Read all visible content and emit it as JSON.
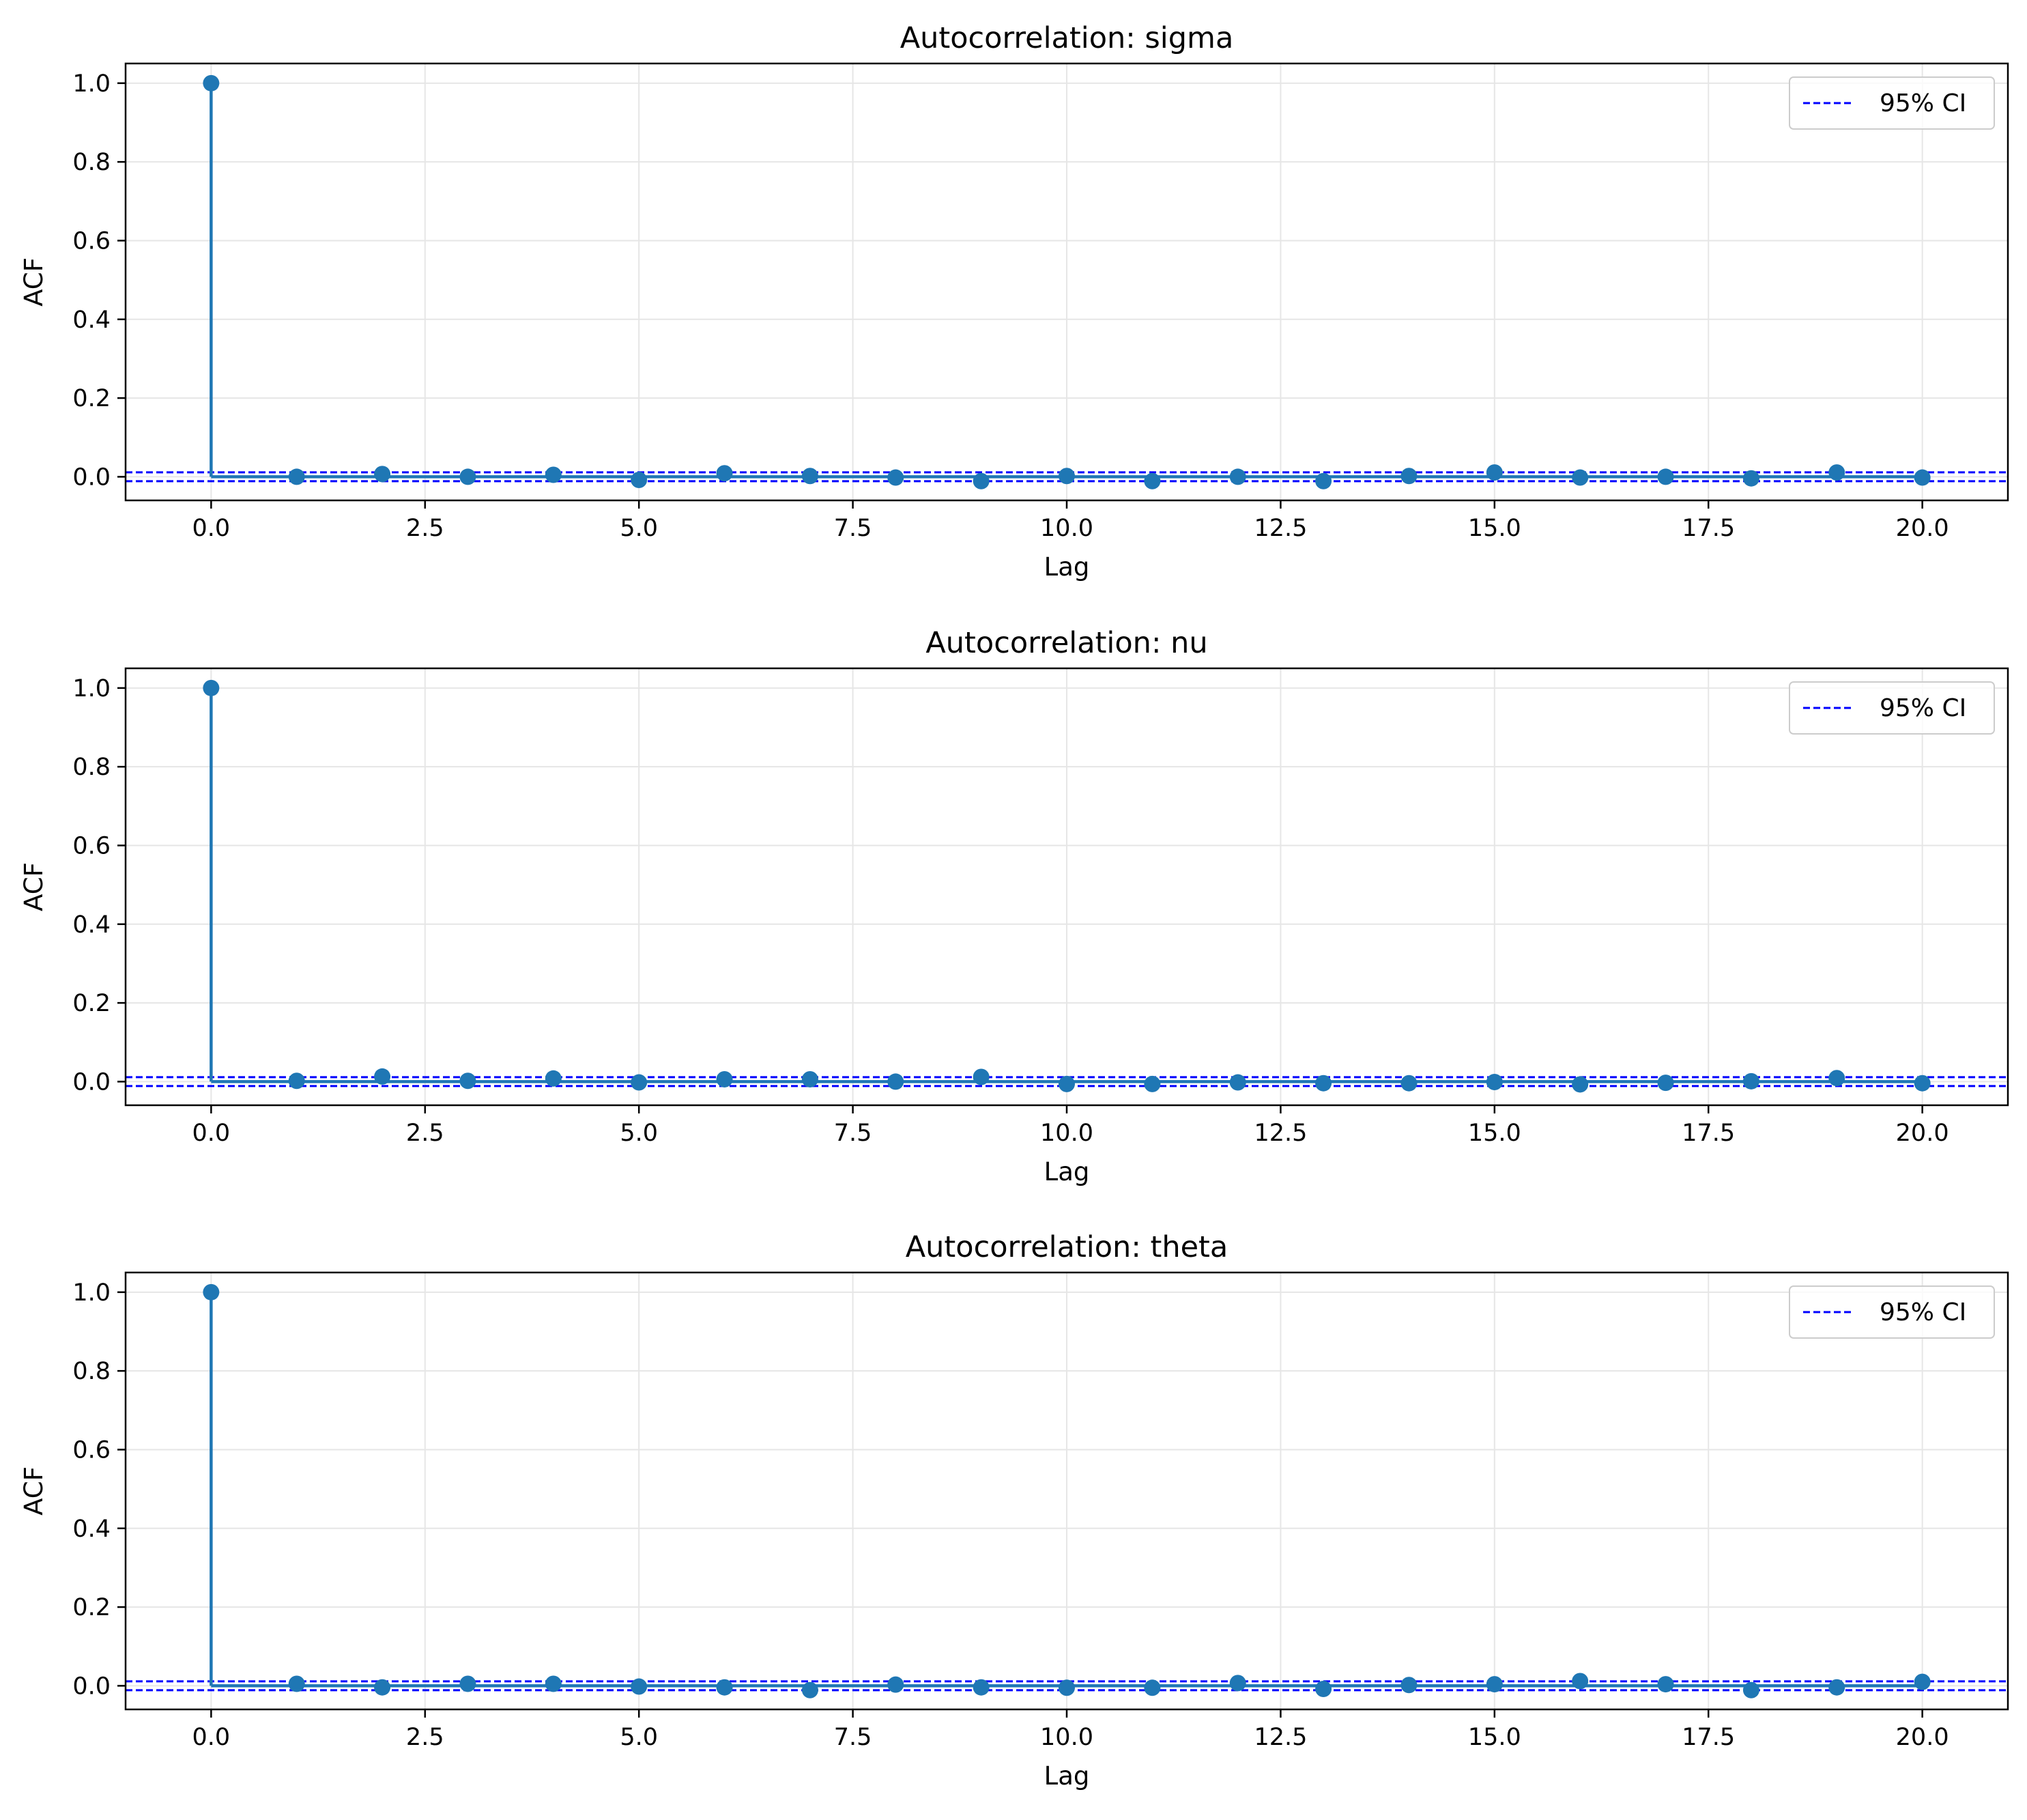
{
  "chart_data": [
    {
      "type": "stem",
      "title": "Autocorrelation: sigma",
      "xlabel": "Lag",
      "ylabel": "ACF",
      "xlim": [
        -1,
        21
      ],
      "ylim": [
        -0.06,
        1.05
      ],
      "x_ticks": [
        "0.0",
        "2.5",
        "5.0",
        "7.5",
        "10.0",
        "12.5",
        "15.0",
        "17.5",
        "20.0"
      ],
      "y_ticks": [
        "0.0",
        "0.2",
        "0.4",
        "0.6",
        "0.8",
        "1.0"
      ],
      "grid": true,
      "legend": {
        "placement": "top-right",
        "entries": [
          "95% CI"
        ]
      },
      "ci": [
        -0.0113,
        0.0113
      ],
      "x": [
        0,
        1,
        2,
        3,
        4,
        5,
        6,
        7,
        8,
        9,
        10,
        11,
        12,
        13,
        14,
        15,
        16,
        17,
        18,
        19,
        20
      ],
      "values": [
        1.0,
        0.0,
        0.007,
        0.0,
        0.005,
        -0.008,
        0.009,
        0.002,
        -0.002,
        -0.011,
        0.002,
        -0.011,
        0.0,
        -0.011,
        0.002,
        0.011,
        -0.002,
        0.0,
        -0.004,
        0.011,
        -0.002
      ]
    },
    {
      "type": "stem",
      "title": "Autocorrelation: nu",
      "xlabel": "Lag",
      "ylabel": "ACF",
      "xlim": [
        -1,
        21
      ],
      "ylim": [
        -0.06,
        1.05
      ],
      "x_ticks": [
        "0.0",
        "2.5",
        "5.0",
        "7.5",
        "10.0",
        "12.5",
        "15.0",
        "17.5",
        "20.0"
      ],
      "y_ticks": [
        "0.0",
        "0.2",
        "0.4",
        "0.6",
        "0.8",
        "1.0"
      ],
      "grid": true,
      "legend": {
        "placement": "top-right",
        "entries": [
          "95% CI"
        ]
      },
      "ci": [
        -0.0113,
        0.0113
      ],
      "x": [
        0,
        1,
        2,
        3,
        4,
        5,
        6,
        7,
        8,
        9,
        10,
        11,
        12,
        13,
        14,
        15,
        16,
        17,
        18,
        19,
        20
      ],
      "values": [
        1.0,
        0.002,
        0.013,
        0.002,
        0.008,
        -0.002,
        0.006,
        0.006,
        0.0,
        0.012,
        -0.006,
        -0.006,
        -0.002,
        -0.004,
        -0.004,
        -0.001,
        -0.007,
        -0.003,
        0.001,
        0.009,
        -0.004
      ]
    },
    {
      "type": "stem",
      "title": "Autocorrelation: theta",
      "xlabel": "Lag",
      "ylabel": "ACF",
      "xlim": [
        -1,
        21
      ],
      "ylim": [
        -0.06,
        1.05
      ],
      "x_ticks": [
        "0.0",
        "2.5",
        "5.0",
        "7.5",
        "10.0",
        "12.5",
        "15.0",
        "17.5",
        "20.0"
      ],
      "y_ticks": [
        "0.0",
        "0.2",
        "0.4",
        "0.6",
        "0.8",
        "1.0"
      ],
      "grid": true,
      "legend": {
        "placement": "top-right",
        "entries": [
          "95% CI"
        ]
      },
      "ci": [
        -0.0113,
        0.0113
      ],
      "x": [
        0,
        1,
        2,
        3,
        4,
        5,
        6,
        7,
        8,
        9,
        10,
        11,
        12,
        13,
        14,
        15,
        16,
        17,
        18,
        19,
        20
      ],
      "values": [
        1.0,
        0.005,
        -0.004,
        0.005,
        0.005,
        -0.002,
        -0.004,
        -0.011,
        0.003,
        -0.004,
        -0.005,
        -0.005,
        0.007,
        -0.008,
        0.002,
        0.004,
        0.012,
        0.004,
        -0.011,
        -0.004,
        0.01
      ]
    }
  ],
  "colors": {
    "stem": "#1f77b4",
    "ci_line": "#0000ff",
    "grid": "#e6e6e6",
    "axes": "#000000",
    "legend_border": "#cccccc"
  }
}
